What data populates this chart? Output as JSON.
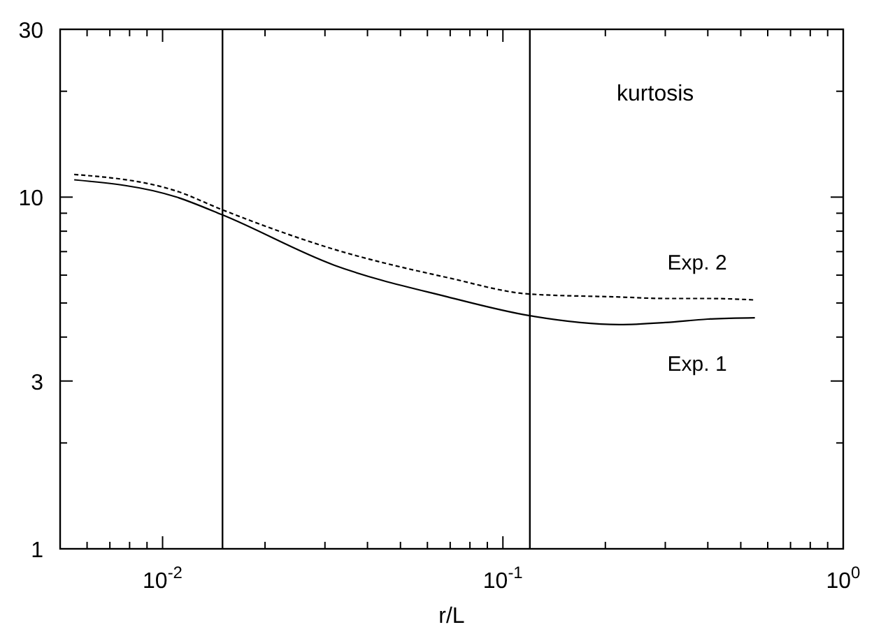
{
  "chart_data": {
    "type": "line",
    "xlabel": "r/L",
    "annotations": [
      "kurtosis"
    ],
    "log": "xy",
    "grid": false,
    "xlim": [
      0.005,
      1
    ],
    "ylim": [
      1,
      30
    ],
    "xticks": [
      {
        "value": 0.006,
        "label": null
      },
      {
        "value": 0.007,
        "label": null
      },
      {
        "value": 0.008,
        "label": null
      },
      {
        "value": 0.009,
        "label": null
      },
      {
        "value": 0.01,
        "label": "10$^{-2}$"
      },
      {
        "value": 0.02,
        "label": null
      },
      {
        "value": 0.03,
        "label": null
      },
      {
        "value": 0.04,
        "label": null
      },
      {
        "value": 0.05,
        "label": null
      },
      {
        "value": 0.06,
        "label": null
      },
      {
        "value": 0.07,
        "label": null
      },
      {
        "value": 0.08,
        "label": null
      },
      {
        "value": 0.09,
        "label": null
      },
      {
        "value": 0.1,
        "label": "10$^{-1}$"
      },
      {
        "value": 0.2,
        "label": null
      },
      {
        "value": 0.3,
        "label": null
      },
      {
        "value": 0.4,
        "label": null
      },
      {
        "value": 0.5,
        "label": null
      },
      {
        "value": 0.6,
        "label": null
      },
      {
        "value": 0.7,
        "label": null
      },
      {
        "value": 0.8,
        "label": null
      },
      {
        "value": 0.9,
        "label": null
      },
      {
        "value": 1,
        "label": "10$^{0}$"
      }
    ],
    "yticks": [
      1,
      {
        "value": 2,
        "label": null
      },
      3,
      {
        "value": 4,
        "label": null
      },
      {
        "value": 5,
        "label": null
      },
      {
        "value": 6,
        "label": null
      },
      {
        "value": 7,
        "label": null
      },
      {
        "value": 8,
        "label": null
      },
      {
        "value": 9,
        "label": null
      },
      10,
      {
        "value": 20,
        "label": null
      },
      30
    ],
    "ref_lines": [
      {
        "axis": "x",
        "value": 0.015,
        "color": "#000000"
      },
      {
        "axis": "x",
        "value": 0.12,
        "color": "#000000"
      }
    ],
    "series": [
      {
        "name": "Exp. 1",
        "color": "#000000",
        "line_style": "solid",
        "x": [
          0.0055,
          0.011,
          0.015,
          0.032,
          0.069,
          0.12,
          0.22,
          0.3,
          0.4,
          0.55
        ],
        "values": [
          11.2,
          10.0,
          8.9,
          6.4,
          5.2,
          4.6,
          4.34,
          4.4,
          4.5,
          4.54
        ]
      },
      {
        "name": "Exp. 2",
        "color": "#000000",
        "line_style": "dashed",
        "x": [
          0.0055,
          0.011,
          0.015,
          0.032,
          0.069,
          0.12,
          0.22,
          0.3,
          0.4,
          0.55
        ],
        "values": [
          11.6,
          10.4,
          9.2,
          7.1,
          5.9,
          5.3,
          5.2,
          5.15,
          5.15,
          5.1
        ]
      }
    ]
  }
}
